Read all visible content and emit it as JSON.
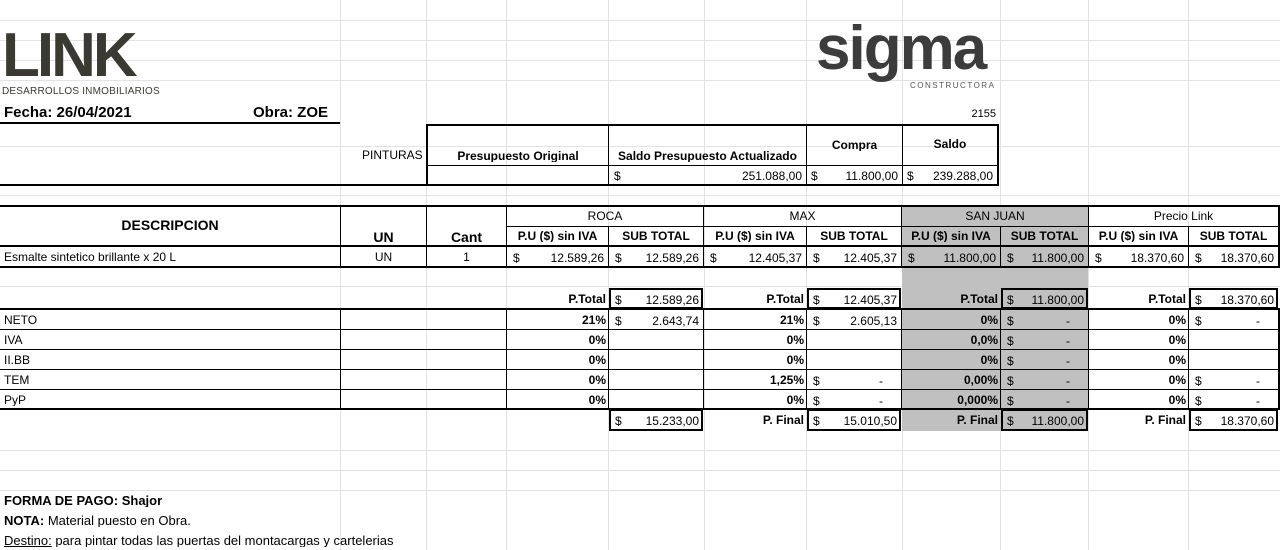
{
  "logos": {
    "link_main": "LINK",
    "link_sub": "DESARROLLOS INMOBILIARIOS",
    "sigma_main": "sigma",
    "sigma_sub": "CONSTRUCTORA"
  },
  "header": {
    "fecha": "Fecha: 26/04/2021",
    "obra": "Obra:  ZOE",
    "code": "2155"
  },
  "budget": {
    "category": "PINTURAS",
    "col_original": "Presupuesto Original",
    "col_saldo_act": "Saldo Presupuesto Actualizado",
    "col_compra": "Compra",
    "col_saldo": "Saldo",
    "currency": "$",
    "saldo_act_value": "251.088,00",
    "compra_value": "11.800,00",
    "saldo_value": "239.288,00"
  },
  "table": {
    "descripcion": "DESCRIPCION",
    "un": "UN",
    "cant": "Cant",
    "pu_label": "P.U ($) sin IVA",
    "sub_label": "SUB TOTAL",
    "suppliers": [
      "ROCA",
      "MAX",
      "SAN JUAN",
      "Precio Link"
    ],
    "item": {
      "desc": "Esmalte sintetico brillante x 20 L",
      "un": "UN",
      "cant": "1",
      "pu": [
        "12.589,26",
        "12.405,37",
        "11.800,00",
        "18.370,60"
      ],
      "sub": [
        "12.589,26",
        "12.405,37",
        "11.800,00",
        "18.370,60"
      ]
    }
  },
  "summary": {
    "ptotal_label": "P.Total",
    "pfinal_label": "P. Final",
    "ptotal": [
      "12.589,26",
      "12.405,37",
      "11.800,00",
      "18.370,60"
    ],
    "row_labels": [
      "NETO",
      "IVA",
      "II.BB",
      "TEM",
      "PyP"
    ],
    "pct": [
      [
        "21%",
        "21%",
        "0%",
        "0%"
      ],
      [
        "0%",
        "0%",
        "0,0%",
        "0%"
      ],
      [
        "0%",
        "0%",
        "0%",
        "0%"
      ],
      [
        "0%",
        "1,25%",
        "0,00%",
        "0%"
      ],
      [
        "0%",
        "0%",
        "0,000%",
        "0%"
      ]
    ],
    "vals": [
      [
        "2.643,74",
        "2.605,13",
        "-",
        "-"
      ],
      [
        "",
        "",
        "-",
        ""
      ],
      [
        "",
        "",
        "-",
        ""
      ],
      [
        "",
        "-",
        "-",
        "-"
      ],
      [
        "",
        "-",
        "-",
        "-"
      ]
    ],
    "pfinal": [
      "15.233,00",
      "15.010,50",
      "11.800,00",
      "18.370,60"
    ]
  },
  "footer": {
    "forma_pago": "FORMA DE PAGO:  Shajor",
    "nota_label": "NOTA:",
    "nota_text": " Material puesto en Obra.",
    "destino_label": "Destino:",
    "destino_text": "  para pintar todas las puertas del montacargas y cartelerias"
  },
  "colors": {
    "highlight": "#c0c0c0",
    "link_gold": "#b7a97a",
    "sigma_red": "#c0392b"
  }
}
